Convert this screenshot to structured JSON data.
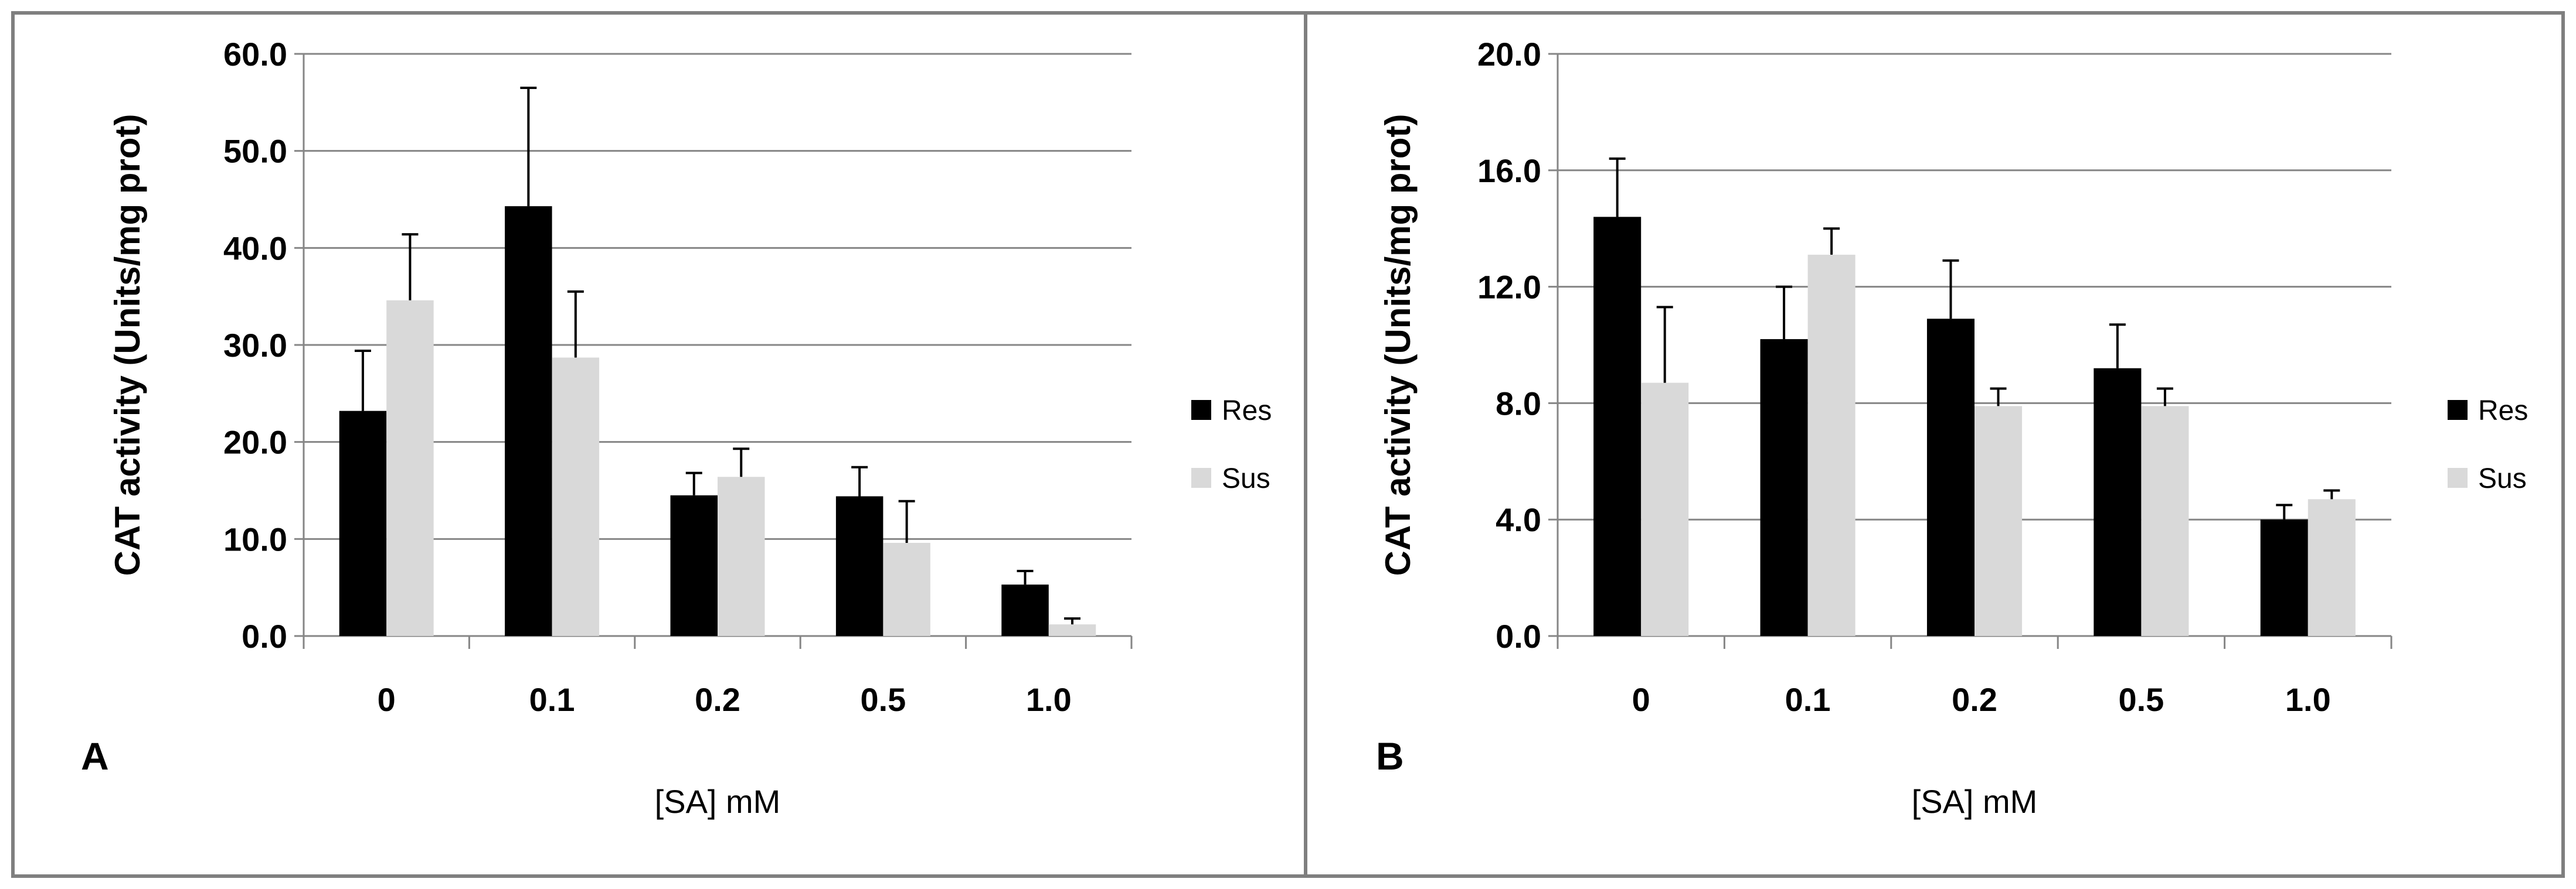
{
  "chart_data": [
    {
      "type": "bar",
      "panel": "A",
      "categories": [
        "0",
        "0.1",
        "0.2",
        "0.5",
        "1.0"
      ],
      "series": [
        {
          "name": "Res",
          "color": "#000000",
          "values": [
            23.2,
            44.3,
            14.5,
            14.4,
            5.3
          ],
          "errors": [
            6.2,
            12.2,
            2.3,
            3.0,
            1.4
          ]
        },
        {
          "name": "Sus",
          "color": "#d9d9d9",
          "values": [
            34.6,
            28.7,
            16.4,
            9.6,
            1.2
          ],
          "errors": [
            6.8,
            6.8,
            2.9,
            4.3,
            0.6
          ]
        }
      ],
      "ylabel": "CAT activity (Units/mg prot)",
      "xlabel": "[SA] mM",
      "ylim": [
        0,
        60
      ],
      "yticks": [
        "0.0",
        "10.0",
        "20.0",
        "30.0",
        "40.0",
        "50.0",
        "60.0"
      ],
      "grid": true,
      "legend": "right"
    },
    {
      "type": "bar",
      "panel": "B",
      "categories": [
        "0",
        "0.1",
        "0.2",
        "0.5",
        "1.0"
      ],
      "series": [
        {
          "name": "Res",
          "color": "#000000",
          "values": [
            14.4,
            10.2,
            10.9,
            9.2,
            4.0
          ],
          "errors": [
            2.0,
            1.8,
            2.0,
            1.5,
            0.5
          ]
        },
        {
          "name": "Sus",
          "color": "#d9d9d9",
          "values": [
            8.7,
            13.1,
            7.9,
            7.9,
            4.7
          ],
          "errors": [
            2.6,
            0.9,
            0.6,
            0.6,
            0.3
          ]
        }
      ],
      "ylabel": "CAT activity (Units/mg prot)",
      "xlabel": "[SA] mM",
      "ylim": [
        0,
        20
      ],
      "yticks": [
        "0.0",
        "4.0",
        "8.0",
        "12.0",
        "16.0",
        "20.0"
      ],
      "grid": true,
      "legend": "right"
    }
  ]
}
